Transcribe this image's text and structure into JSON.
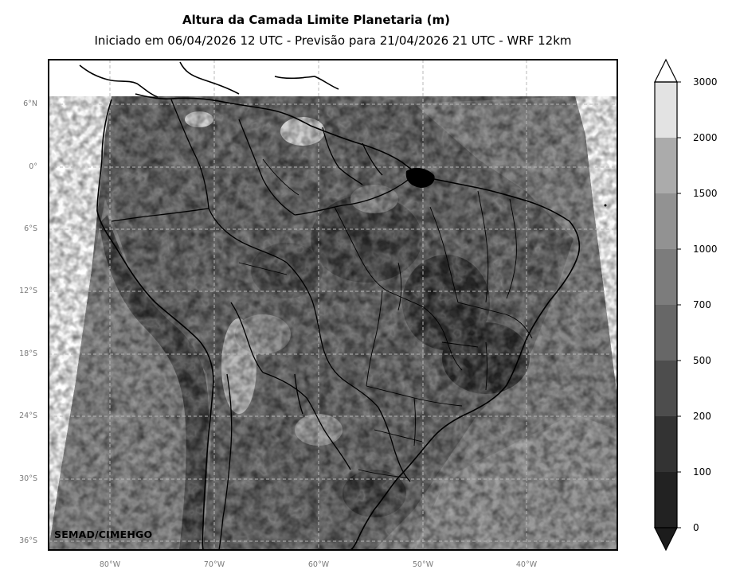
{
  "header": {
    "title": "Altura da Camada Limite Planetaria (m)",
    "subtitle": "Iniciado em 06/04/2026 12 UTC - Previsão para 21/04/2026 21 UTC - WRF 12km"
  },
  "map": {
    "lat_labels": [
      "6°N",
      "0°",
      "6°S",
      "12°S",
      "18°S",
      "24°S",
      "30°S",
      "36°S"
    ],
    "lon_labels": [
      "80°W",
      "70°W",
      "60°W",
      "50°W",
      "40°W"
    ],
    "credit": "SEMAD/CIMEHGO"
  },
  "colorbar": {
    "levels": [
      "0",
      "100",
      "200",
      "500",
      "700",
      "1000",
      "1500",
      "2000",
      "3000"
    ],
    "colors": [
      "#1c1c1c",
      "#222222",
      "#333333",
      "#4d4d4d",
      "#676767",
      "#7c7c7c",
      "#929292",
      "#ababab",
      "#e3e3e3"
    ]
  }
}
